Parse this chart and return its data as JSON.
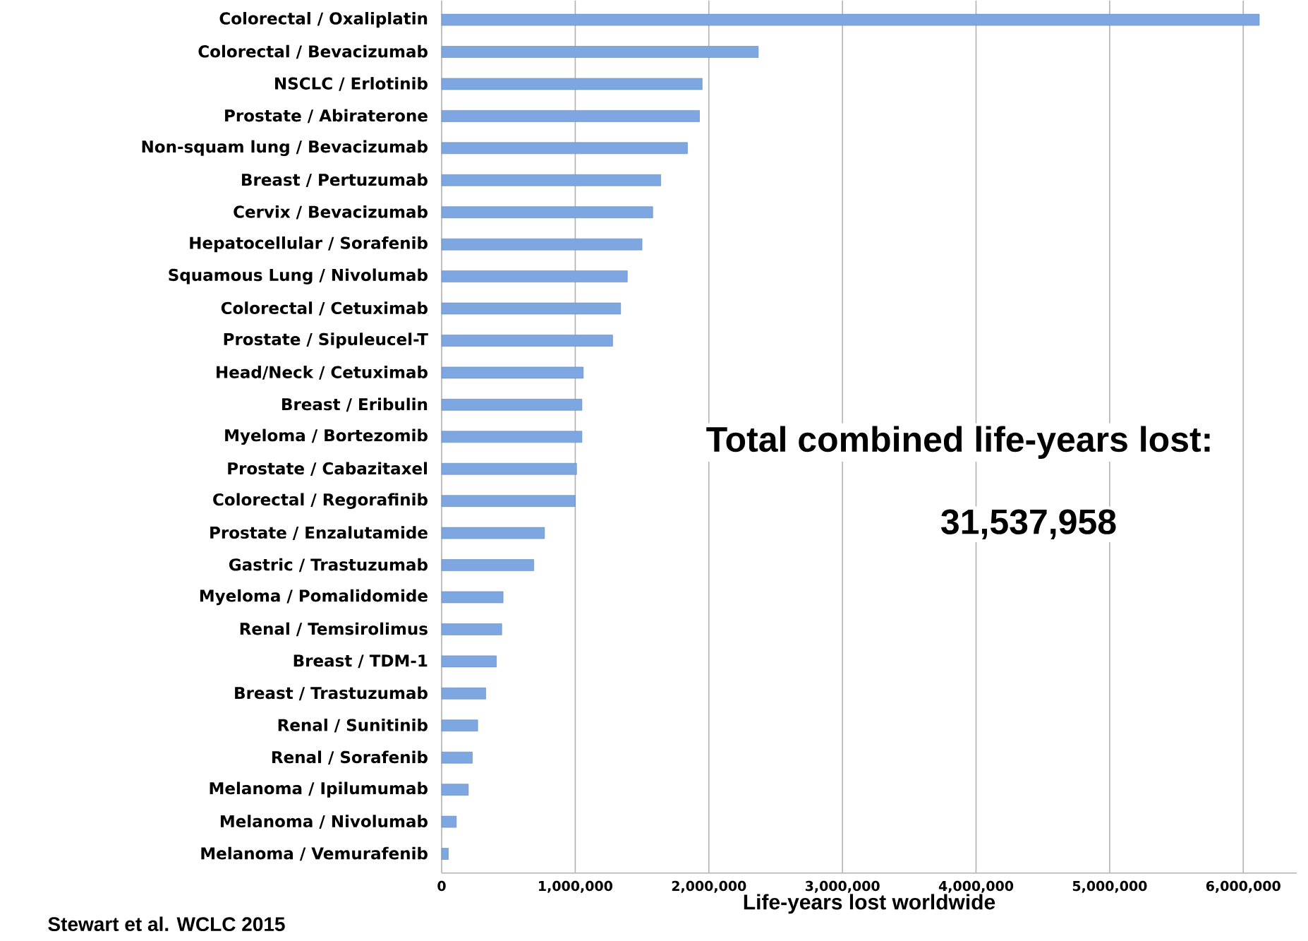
{
  "chart_data": {
    "type": "bar",
    "orientation": "horizontal",
    "xlabel": "Life-years lost worldwide",
    "categories": [
      "Colorectal / Oxaliplatin",
      "Colorectal / Bevacizumab",
      "NSCLC / Erlotinib",
      "Prostate / Abiraterone",
      "Non-squam lung / Bevacizumab",
      "Breast / Pertuzumab",
      "Cervix / Bevacizumab",
      "Hepatocellular / Sorafenib",
      "Squamous Lung / Nivolumab",
      "Colorectal / Cetuximab",
      "Prostate / Sipuleucel-T",
      "Head/Neck / Cetuximab",
      "Breast / Eribulin",
      "Myeloma / Bortezomib",
      "Prostate / Cabazitaxel",
      "Colorectal / Regorafinib",
      "Prostate / Enzalutamide",
      "Gastric / Trastuzumab",
      "Myeloma / Pomalidomide",
      "Renal / Temsirolimus",
      "Breast / TDM-1",
      "Breast / Trastuzumab",
      "Renal / Sunitinib",
      "Renal / Sorafenib",
      "Melanoma / Ipilumumab",
      "Melanoma / Nivolumab",
      "Melanoma / Vemurafenib"
    ],
    "values": [
      6120000,
      2370000,
      1950000,
      1930000,
      1840000,
      1640000,
      1580000,
      1500000,
      1390000,
      1340000,
      1280000,
      1060000,
      1050000,
      1050000,
      1010000,
      1000000,
      770000,
      690000,
      460000,
      450000,
      410000,
      330000,
      270000,
      230000,
      200000,
      110000,
      50000
    ],
    "color": "#7ea7e2",
    "xlim": [
      0,
      6400000
    ],
    "xticks": [
      0,
      {
        "value": 1000000,
        "label": "1,000,000"
      },
      {
        "value": 2000000,
        "label": "2,000,000"
      },
      {
        "value": 3000000,
        "label": "3,000,000"
      },
      {
        "value": 4000000,
        "label": "4,000,000"
      },
      {
        "value": 5000000,
        "label": "5,000,000"
      },
      {
        "value": 6000000,
        "label": "6,000,000"
      }
    ],
    "grid": "x",
    "annotations": [
      "Total combined life-years lost:",
      "31,537,958",
      "Stewart et al. WCLC 2015"
    ]
  }
}
